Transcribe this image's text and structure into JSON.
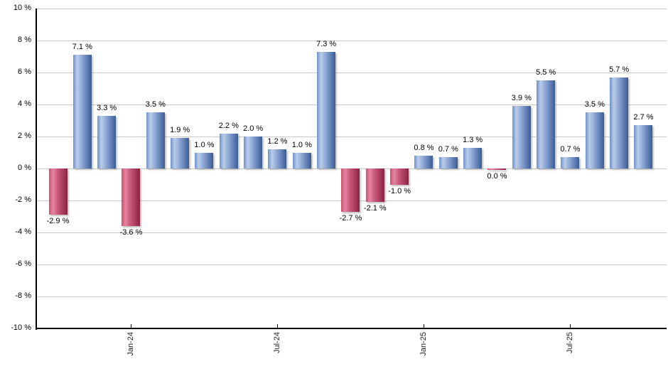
{
  "chart_data": {
    "type": "bar",
    "title": "",
    "xlabel": "",
    "ylabel": "",
    "grid": true,
    "legend": null,
    "bars": [
      {
        "value": -2.9,
        "label": "-2.9 %",
        "color": "negative"
      },
      {
        "value": 7.1,
        "label": "7.1 %",
        "color": "positive"
      },
      {
        "value": 3.3,
        "label": "3.3 %",
        "color": "positive"
      },
      {
        "value": -3.6,
        "label": "-3.6 %",
        "color": "negative"
      },
      {
        "value": 3.5,
        "label": "3.5 %",
        "color": "positive"
      },
      {
        "value": 1.9,
        "label": "1.9 %",
        "color": "positive"
      },
      {
        "value": 1.0,
        "label": "1.0 %",
        "color": "positive"
      },
      {
        "value": 2.2,
        "label": "2.2 %",
        "color": "positive"
      },
      {
        "value": 2.0,
        "label": "2.0 %",
        "color": "positive"
      },
      {
        "value": 1.2,
        "label": "1.2 %",
        "color": "positive"
      },
      {
        "value": 1.0,
        "label": "1.0 %",
        "color": "positive"
      },
      {
        "value": 7.3,
        "label": "7.3 %",
        "color": "positive"
      },
      {
        "value": -2.7,
        "label": "-2.7 %",
        "color": "negative"
      },
      {
        "value": -2.1,
        "label": "-2.1 %",
        "color": "negative"
      },
      {
        "value": -1.0,
        "label": "-1.0 %",
        "color": "negative"
      },
      {
        "value": 0.8,
        "label": "0.8 %",
        "color": "positive"
      },
      {
        "value": 0.7,
        "label": "0.7 %",
        "color": "positive"
      },
      {
        "value": 1.3,
        "label": "1.3 %",
        "color": "positive"
      },
      {
        "value": 0.0,
        "label": "0.0 %",
        "color": "negative"
      },
      {
        "value": 3.9,
        "label": "3.9 %",
        "color": "positive"
      },
      {
        "value": 5.5,
        "label": "5.5 %",
        "color": "positive"
      },
      {
        "value": 0.7,
        "label": "0.7 %",
        "color": "positive"
      },
      {
        "value": 3.5,
        "label": "3.5 %",
        "color": "positive"
      },
      {
        "value": 5.7,
        "label": "5.7 %",
        "color": "positive"
      },
      {
        "value": 2.7,
        "label": "2.7 %",
        "color": "positive"
      }
    ],
    "x_axis": {
      "tick_labels": [
        "Jan-24",
        "Jul-24",
        "Jan-25",
        "Jul-25"
      ],
      "tick_bar_indices": [
        3,
        9,
        15,
        21
      ]
    },
    "y_axis": {
      "min": -10,
      "max": 10,
      "step": 2,
      "unit": "%",
      "tick_labels": [
        "10 %",
        "8 %",
        "6 %",
        "4 %",
        "2 %",
        "0 %",
        "-2 %",
        "-4 %",
        "-6 %",
        "-8 %",
        "-10 %"
      ]
    },
    "colors": {
      "positive_bar_gradient": [
        "#6f91c9",
        "#bacde9",
        "#93acd8",
        "#3a5c98"
      ],
      "negative_bar_gradient": [
        "#c4546f",
        "#e583a0",
        "#cb5c7d",
        "#8c2141"
      ],
      "gridline": "#c9c9c9",
      "axis": "#000000",
      "label_text": "#000000",
      "background": "#ffffff"
    }
  }
}
